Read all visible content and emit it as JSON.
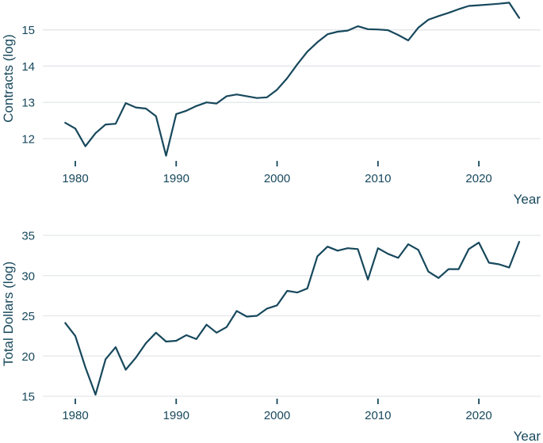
{
  "figure": {
    "background": "#ffffff",
    "text_color": "#17485C",
    "line_color": "#17485C",
    "gridline_color": "#e3e6e9",
    "tick_color": "#17485C"
  },
  "chart_data": [
    {
      "type": "line",
      "title": "",
      "xlabel": "Year",
      "ylabel": "Contracts (log)",
      "grid": "horizontal-only",
      "legend": "none",
      "xlim": [
        1977.6,
        2026.2
      ],
      "ylim": [
        11.35,
        15.95
      ],
      "x_ticks": [
        1980,
        1990,
        2000,
        2010,
        2020
      ],
      "x_tick_labels": [
        "1980",
        "1990",
        "2000",
        "2010",
        "2020"
      ],
      "y_ticks": [
        12,
        13,
        14,
        15
      ],
      "y_tick_labels": [
        "12",
        "13",
        "14",
        "15"
      ],
      "x": [
        1979,
        1980,
        1981,
        1982,
        1983,
        1984,
        1985,
        1986,
        1987,
        1988,
        1989,
        1990,
        1991,
        1992,
        1993,
        1994,
        1995,
        1996,
        1997,
        1998,
        1999,
        2000,
        2001,
        2002,
        2003,
        2004,
        2005,
        2006,
        2007,
        2008,
        2009,
        2010,
        2011,
        2012,
        2013,
        2014,
        2015,
        2016,
        2017,
        2018,
        2019,
        2020,
        2021,
        2022,
        2023,
        2024
      ],
      "y": [
        12.44,
        12.28,
        11.79,
        12.15,
        12.39,
        12.41,
        12.98,
        12.86,
        12.83,
        12.62,
        11.53,
        12.68,
        12.77,
        12.9,
        13.0,
        12.97,
        13.17,
        13.22,
        13.17,
        13.12,
        13.14,
        13.35,
        13.67,
        14.05,
        14.4,
        14.66,
        14.88,
        14.95,
        14.98,
        15.1,
        15.02,
        15.01,
        14.99,
        14.86,
        14.71,
        15.06,
        15.28,
        15.38,
        15.47,
        15.57,
        15.66,
        15.68,
        15.7,
        15.72,
        15.75,
        15.33
      ]
    },
    {
      "type": "line",
      "title": "",
      "xlabel": "Year",
      "ylabel": "Total Dollars (log)",
      "grid": "horizontal-only",
      "legend": "none",
      "xlim": [
        1977.6,
        2026.2
      ],
      "ylim": [
        14.2,
        35.3
      ],
      "x_ticks": [
        1980,
        1990,
        2000,
        2010,
        2020
      ],
      "x_tick_labels": [
        "1980",
        "1990",
        "2000",
        "2010",
        "2020"
      ],
      "y_ticks": [
        15,
        20,
        25,
        30,
        35
      ],
      "y_tick_labels": [
        "15",
        "20",
        "25",
        "30",
        "35"
      ],
      "x": [
        1979,
        1980,
        1981,
        1982,
        1983,
        1984,
        1985,
        1986,
        1987,
        1988,
        1989,
        1990,
        1991,
        1992,
        1993,
        1994,
        1995,
        1996,
        1997,
        1998,
        1999,
        2000,
        2001,
        2002,
        2003,
        2004,
        2005,
        2006,
        2007,
        2008,
        2009,
        2010,
        2011,
        2012,
        2013,
        2014,
        2015,
        2016,
        2017,
        2018,
        2019,
        2020,
        2021,
        2022,
        2023,
        2024
      ],
      "y": [
        24.1,
        22.5,
        18.6,
        15.2,
        19.6,
        21.1,
        18.3,
        19.8,
        21.6,
        22.9,
        21.8,
        21.9,
        22.6,
        22.1,
        23.9,
        22.9,
        23.6,
        25.6,
        24.9,
        25.0,
        25.9,
        26.3,
        28.1,
        27.9,
        28.4,
        32.4,
        33.6,
        33.1,
        33.4,
        33.3,
        29.5,
        33.4,
        32.7,
        32.2,
        33.9,
        33.2,
        30.5,
        29.7,
        30.8,
        30.8,
        33.3,
        34.1,
        31.6,
        31.4,
        31.0,
        34.2
      ]
    }
  ]
}
